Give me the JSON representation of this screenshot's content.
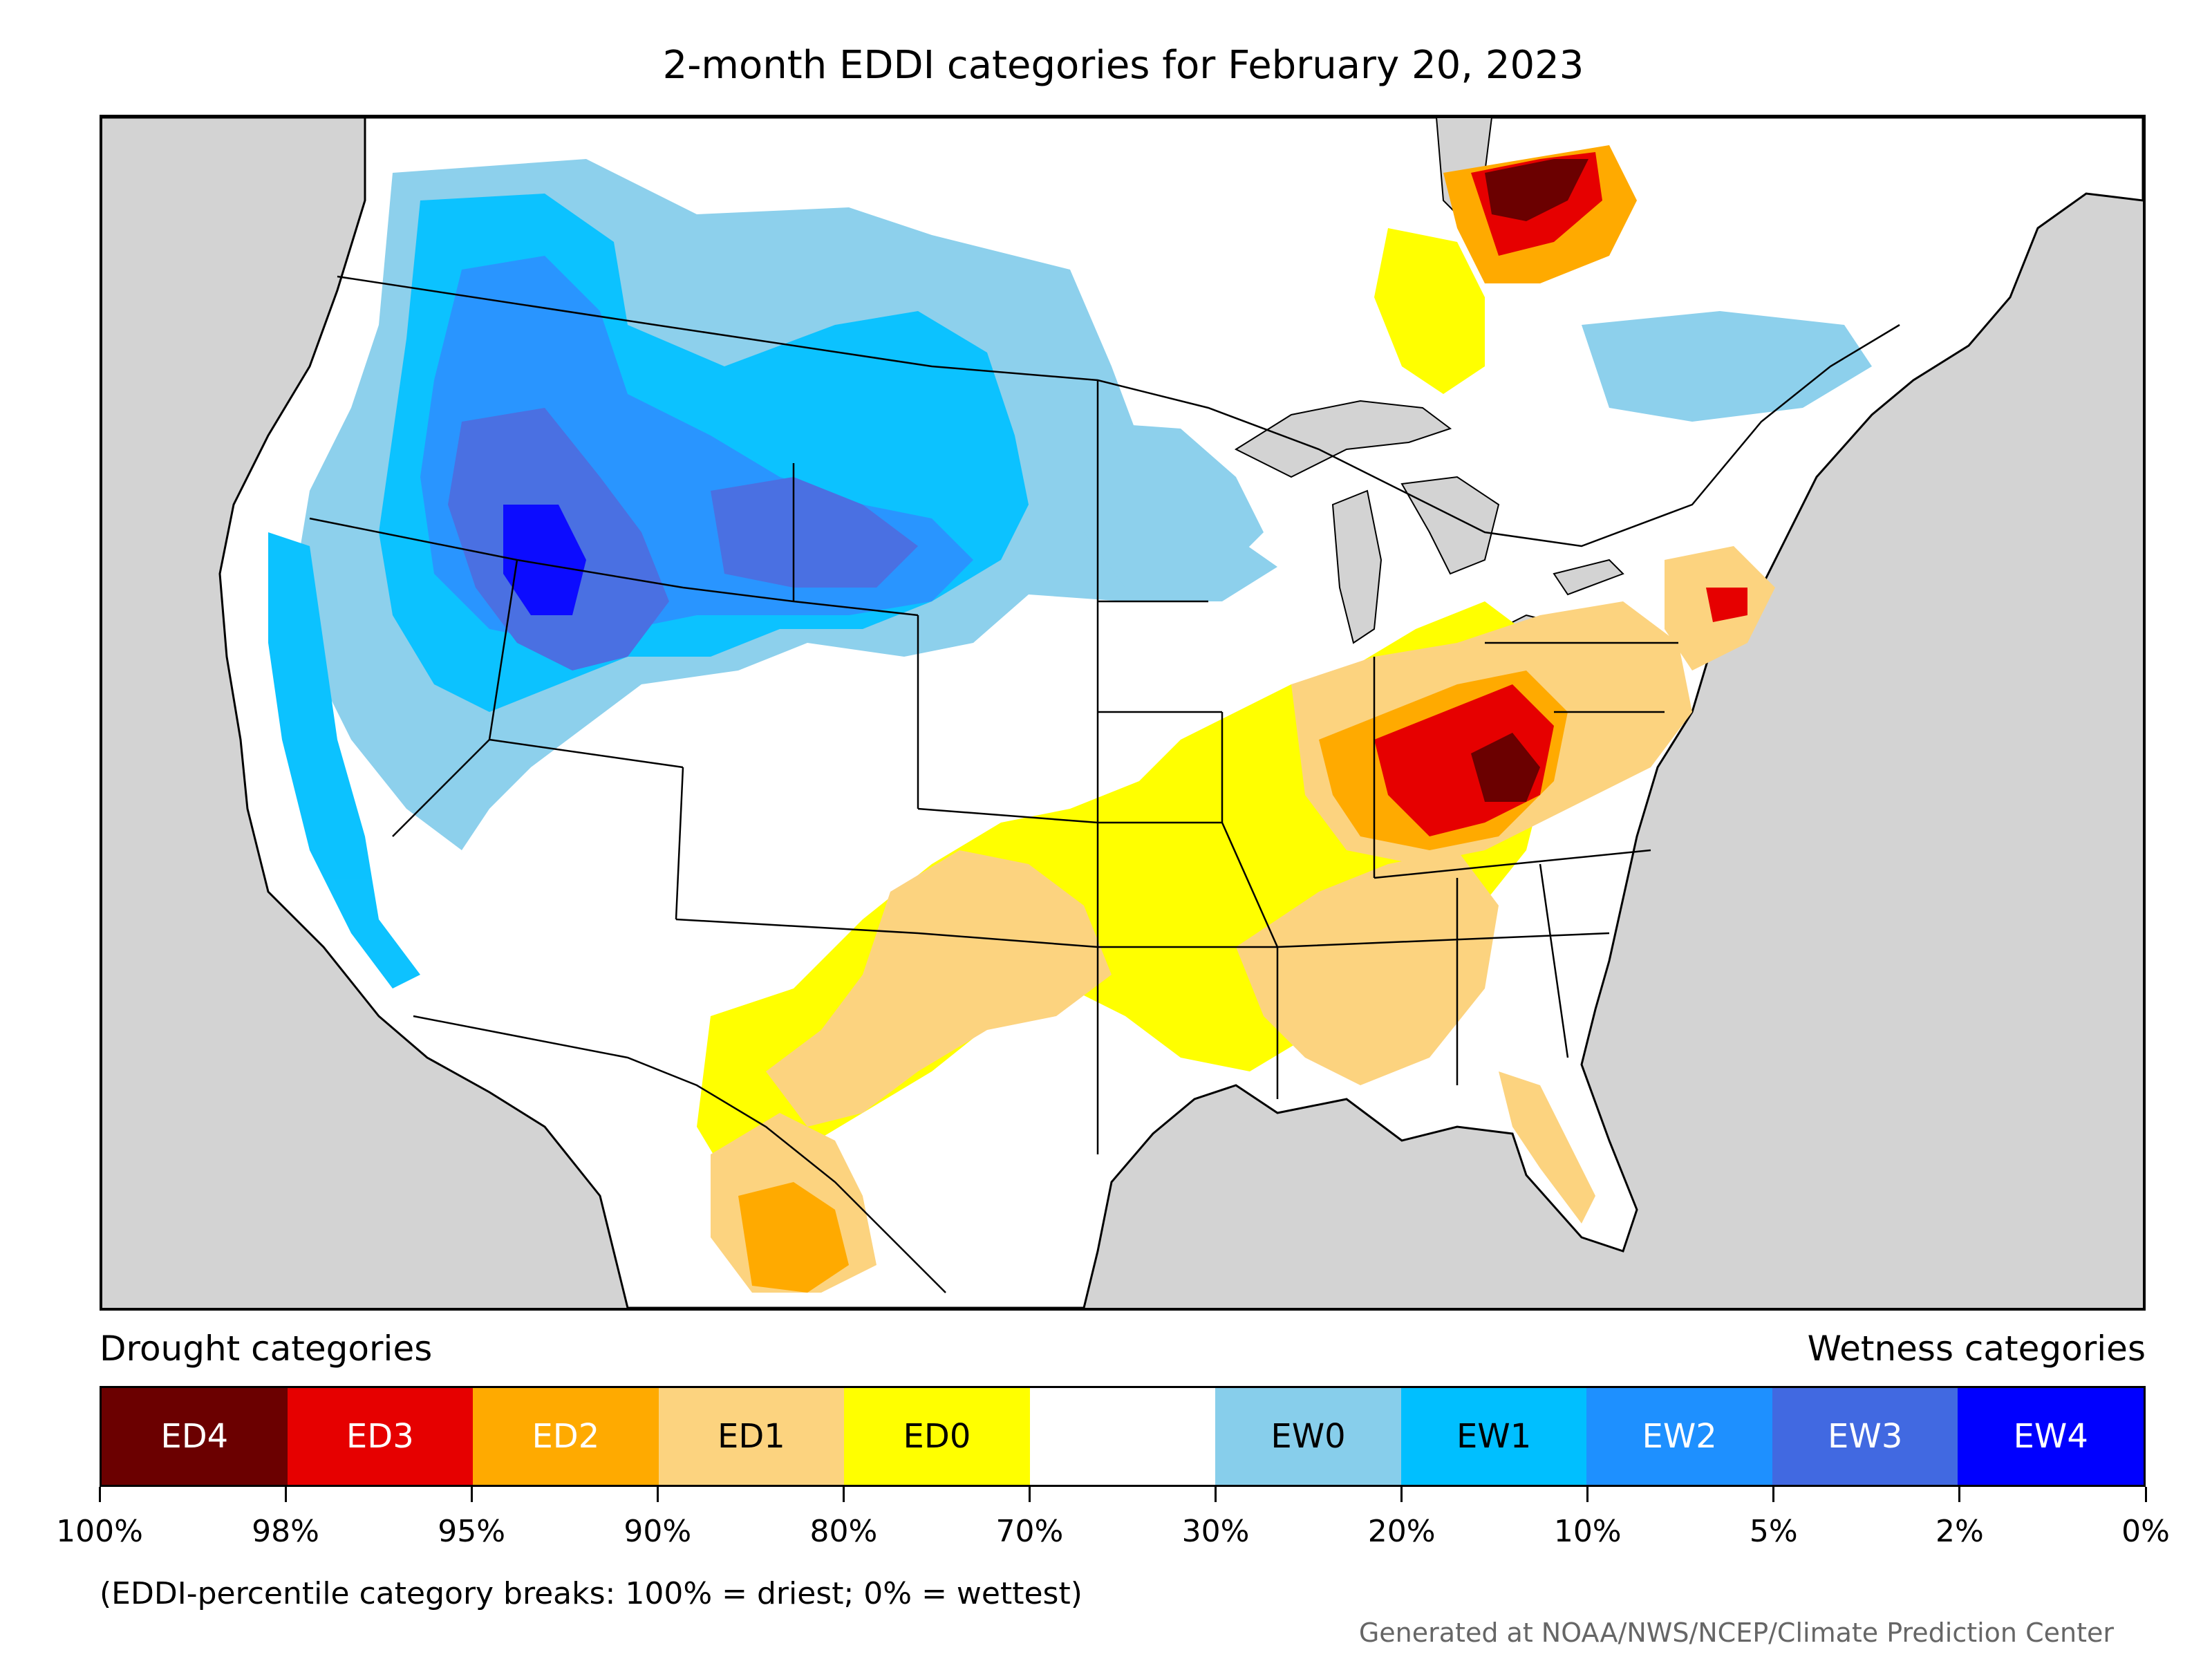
{
  "title": "2-month EDDI categories for February 20, 2023",
  "legend": {
    "drought_heading": "Drought categories",
    "wetness_heading": "Wetness categories",
    "categories": [
      {
        "label": "ED4",
        "color": "#6b0000",
        "text_color": "#ffffff"
      },
      {
        "label": "ED3",
        "color": "#e60000",
        "text_color": "#ffffff"
      },
      {
        "label": "ED2",
        "color": "#ffaa00",
        "text_color": "#ffffff"
      },
      {
        "label": "ED1",
        "color": "#fcd37f",
        "text_color": "#000000"
      },
      {
        "label": "ED0",
        "color": "#ffff00",
        "text_color": "#000000"
      },
      {
        "label": "",
        "color": "#ffffff",
        "text_color": "#000000"
      },
      {
        "label": "EW0",
        "color": "#87ceeb",
        "text_color": "#000000"
      },
      {
        "label": "EW1",
        "color": "#00bfff",
        "text_color": "#000000"
      },
      {
        "label": "EW2",
        "color": "#1e90ff",
        "text_color": "#ffffff"
      },
      {
        "label": "EW3",
        "color": "#4169e1",
        "text_color": "#ffffff"
      },
      {
        "label": "EW4",
        "color": "#0000ff",
        "text_color": "#ffffff"
      }
    ],
    "breaks": [
      "100%",
      "98%",
      "95%",
      "90%",
      "80%",
      "70%",
      "30%",
      "20%",
      "10%",
      "5%",
      "2%",
      "0%"
    ]
  },
  "note": "(EDDI-percentile category breaks: 100% = driest; 0% = wettest)",
  "credit": "Generated at NOAA/NWS/NCEP/Climate Prediction Center",
  "map_colors": {
    "background": "#d3d3d3",
    "land": "#ffffff",
    "border": "#000000"
  }
}
